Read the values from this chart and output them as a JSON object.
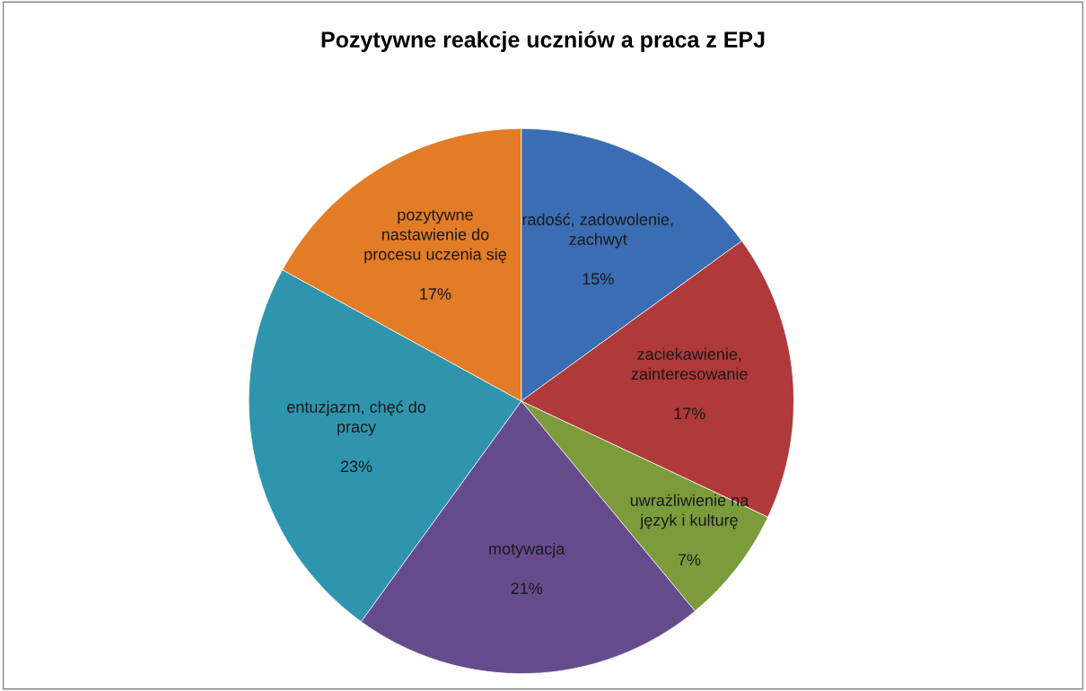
{
  "chart_data": {
    "type": "pie",
    "title": "Pozytywne reakcje uczniów a praca z EPJ",
    "categories": [
      "radość, zadowolenie,\nzachwyt",
      "zaciekawienie,\nzainteresowanie",
      "uwrażliwienie na\njęzyk i kulturę",
      "motywacja",
      "entuzjazm, chęć do\npracy",
      "pozytywne\nnastawienie do\nprocesu uczenia się"
    ],
    "values": [
      15,
      17,
      7,
      21,
      23,
      17
    ],
    "value_labels": [
      "15%",
      "17%",
      "7%",
      "21%",
      "23%",
      "17%"
    ],
    "colors": [
      "#3a6db3",
      "#b0393a",
      "#7c9c3c",
      "#664b8c",
      "#2f95ae",
      "#e27c26"
    ],
    "legend": false
  }
}
